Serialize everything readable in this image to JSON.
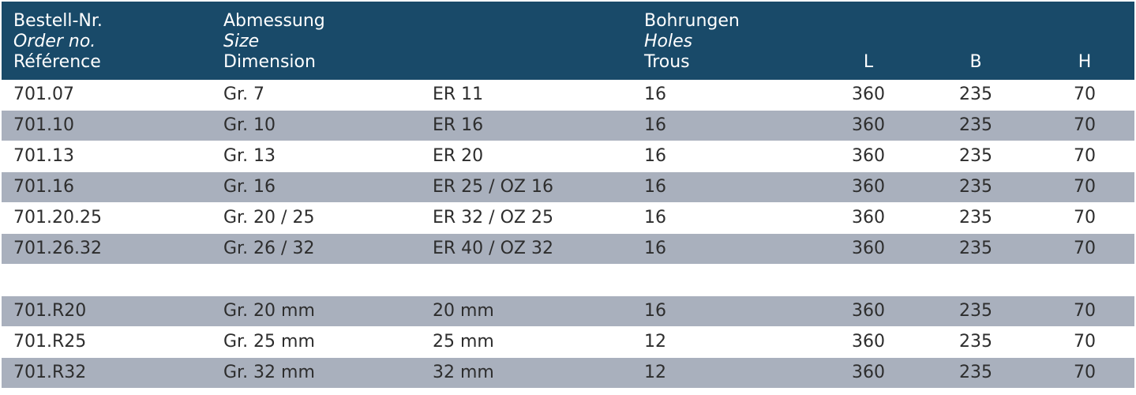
{
  "header": {
    "order": [
      "Bestell-Nr.",
      "Order no.",
      "Référence"
    ],
    "size": [
      "Abmessung",
      "Size",
      "Dimension"
    ],
    "holes": [
      "Bohrungen",
      "Holes",
      "Trous"
    ],
    "l": "L",
    "b": "B",
    "h": "H"
  },
  "rows_a": [
    {
      "order": "701.07",
      "size": "Gr. 7",
      "size2": "ER 11",
      "holes": "16",
      "l": "360",
      "b": "235",
      "h": "70"
    },
    {
      "order": "701.10",
      "size": "Gr. 10",
      "size2": "ER 16",
      "holes": "16",
      "l": "360",
      "b": "235",
      "h": "70"
    },
    {
      "order": "701.13",
      "size": "Gr. 13",
      "size2": "ER 20",
      "holes": "16",
      "l": "360",
      "b": "235",
      "h": "70"
    },
    {
      "order": "701.16",
      "size": "Gr. 16",
      "size2": "ER 25 / OZ 16",
      "holes": "16",
      "l": "360",
      "b": "235",
      "h": "70"
    },
    {
      "order": "701.20.25",
      "size": "Gr. 20 / 25",
      "size2": "ER 32 / OZ 25",
      "holes": "16",
      "l": "360",
      "b": "235",
      "h": "70"
    },
    {
      "order": "701.26.32",
      "size": "Gr. 26 / 32",
      "size2": "ER 40 / OZ 32",
      "holes": "16",
      "l": "360",
      "b": "235",
      "h": "70"
    }
  ],
  "rows_b": [
    {
      "order": "701.R20",
      "size": "Gr. 20 mm",
      "size2": "20 mm",
      "holes": "16",
      "l": "360",
      "b": "235",
      "h": "70"
    },
    {
      "order": "701.R25",
      "size": "Gr. 25 mm",
      "size2": "25 mm",
      "holes": "12",
      "l": "360",
      "b": "235",
      "h": "70"
    },
    {
      "order": "701.R32",
      "size": "Gr. 32 mm",
      "size2": "32 mm",
      "holes": "12",
      "l": "360",
      "b": "235",
      "h": "70"
    }
  ],
  "colors": {
    "header_bg": "#194a69",
    "shade_bg": "#a9b0bd",
    "header_text": "#ffffff"
  }
}
